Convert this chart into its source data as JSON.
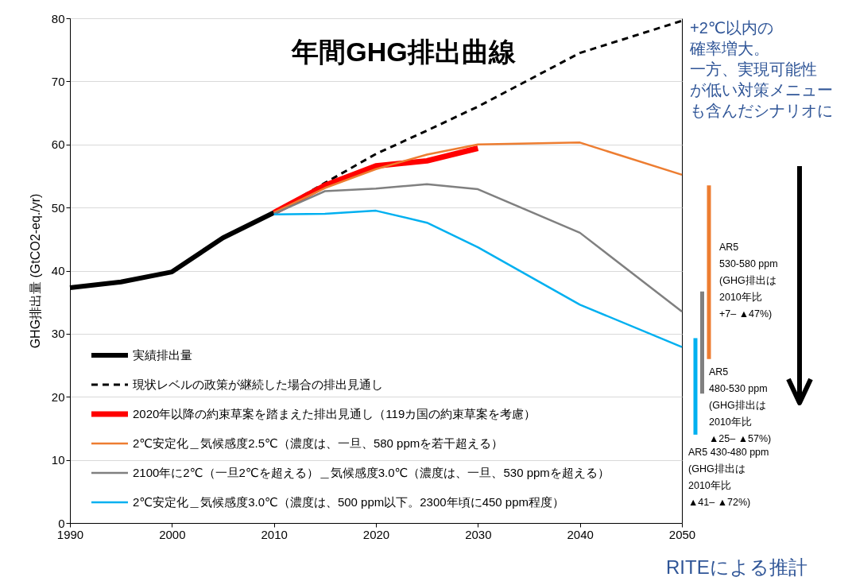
{
  "chart_data": [
    {
      "type": "line",
      "title": "年間GHG排出曲線",
      "ylabel": "GHG排出量 (GtCO2-eq./yr)",
      "xlim": [
        1990,
        2050
      ],
      "xticks": [
        1990,
        2000,
        2010,
        2020,
        2030,
        2040,
        2050
      ],
      "ylim": [
        0,
        80
      ],
      "yticks": [
        0,
        10,
        20,
        30,
        40,
        50,
        60,
        70,
        80
      ],
      "grid": "y",
      "legend": "bottom left",
      "series": [
        {
          "name": "実績排出量",
          "color": "#000000",
          "x": [
            1990,
            1995,
            2000,
            2005,
            2010
          ],
          "values": [
            37.3,
            38.2,
            39.8,
            45.2,
            49.2
          ]
        },
        {
          "name": "現状レベルの政策が継続した場合の排出見通し",
          "color": "#000000",
          "line_style": "dashed",
          "x": [
            2010,
            2015,
            2020,
            2025,
            2030,
            2040,
            2050
          ],
          "values": [
            49.2,
            53.9,
            58.5,
            62.2,
            66,
            74.5,
            79.6
          ]
        },
        {
          "name": "2020年以降の約束草案を踏まえた排出見通し（119カ国の約束草案を考慮）",
          "color": "#ff0000",
          "x": [
            2010,
            2015,
            2020,
            2025,
            2030
          ],
          "values": [
            49.2,
            53.5,
            56.6,
            57.4,
            59.4
          ]
        },
        {
          "name": "2℃安定化＿気候感度2.5℃（濃度は、一旦、580 ppmを若干超える）",
          "color": "#ed7d31",
          "x": [
            2010,
            2015,
            2020,
            2025,
            2030,
            2040,
            2050
          ],
          "values": [
            49.2,
            53.1,
            56.1,
            58.4,
            60,
            60.3,
            55.2
          ]
        },
        {
          "name": "2100年に2℃（一旦2℃を超える）＿気候感度3.0℃（濃度は、一旦、530 ppmを超える）",
          "color": "#808080",
          "x": [
            2010,
            2015,
            2020,
            2025,
            2030,
            2040,
            2050
          ],
          "values": [
            49,
            52.6,
            53,
            53.7,
            52.9,
            46,
            33.5
          ]
        },
        {
          "name": "2℃安定化＿気候感度3.0℃（濃度は、500 ppm以下。2300年頃に450 ppm程度）",
          "color": "#00b0f0",
          "x": [
            2010,
            2015,
            2020,
            2025,
            2030,
            2040,
            2050
          ],
          "values": [
            48.9,
            49,
            49.5,
            47.6,
            43.7,
            34.6,
            27.9
          ]
        }
      ]
    },
    {
      "type": "bar",
      "categories": [
        null,
        null,
        null
      ],
      "ylim": [
        0,
        80
      ],
      "tick_labels": false,
      "base": [
        14,
        20.5,
        26
      ],
      "values": [
        15.3,
        16.2,
        27.5
      ],
      "colors": [
        "#00b0f0",
        "#808080",
        "#ed7d31"
      ],
      "annotations": [
        "+2℃以内の確率増大。一方、実現可能性が低い対策メニューも含んだシナリオに",
        "AR5\n530-580 ppm\n(GHG排出は\n2010年比\n+7– ▲47%)",
        "AR5\n480-530 ppm\n(GHG排出は\n2010年比\n▲25– ▲57%)",
        "AR5 430-480 ppm\n(GHG排出は\n2010年比\n▲41– ▲72%)",
        "RITEによる推計"
      ]
    }
  ]
}
